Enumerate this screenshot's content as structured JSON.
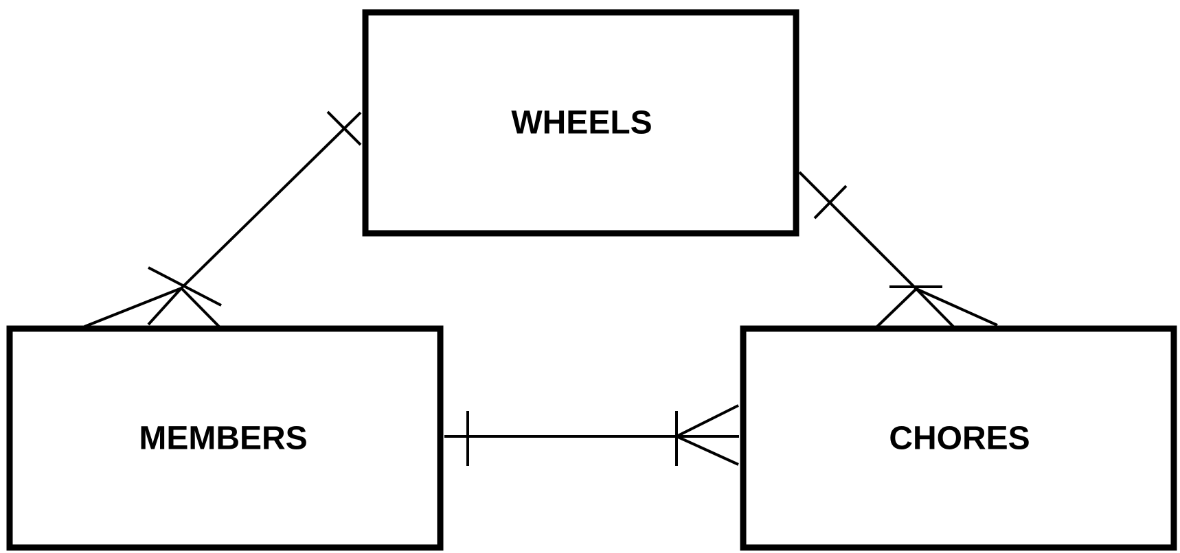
{
  "diagram": {
    "type": "entity-relationship",
    "entities": [
      {
        "id": "wheels",
        "label": "WHEELS"
      },
      {
        "id": "members",
        "label": "MEMBERS"
      },
      {
        "id": "chores",
        "label": "CHORES"
      }
    ],
    "relationships": [
      {
        "from": "wheels",
        "to": "members",
        "from_end": "one",
        "to_end": "one-or-many"
      },
      {
        "from": "wheels",
        "to": "chores",
        "from_end": "one",
        "to_end": "one-or-many"
      },
      {
        "from": "members",
        "to": "chores",
        "from_end": "one",
        "to_end": "one-or-many"
      }
    ],
    "colors": {
      "stroke": "#000000",
      "background": "#ffffff"
    }
  }
}
